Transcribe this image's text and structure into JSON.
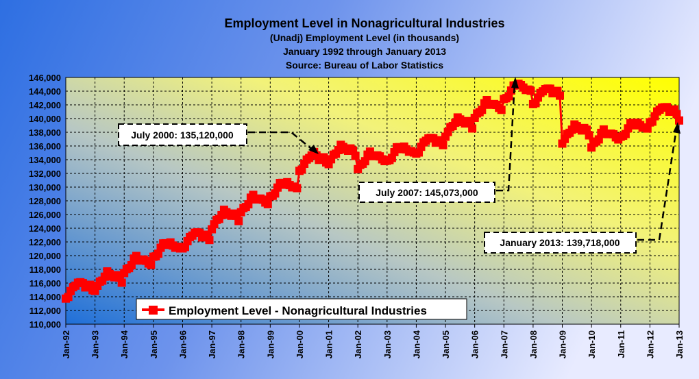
{
  "chart_data": {
    "type": "line",
    "title": "Employment Level in Nonagricultural Industries",
    "subtitles": [
      "(Unadj) Employment Level (in thousands)",
      "January 1992 through January 2013",
      "Source: Bureau of Labor Statistics"
    ],
    "ylim": [
      110000,
      146000
    ],
    "y_ticks": [
      "110,000",
      "112,000",
      "114,000",
      "116,000",
      "118,000",
      "120,000",
      "122,000",
      "124,000",
      "126,000",
      "128,000",
      "130,000",
      "132,000",
      "134,000",
      "136,000",
      "138,000",
      "140,000",
      "142,000",
      "144,000",
      "146,000"
    ],
    "x_ticks": [
      "Jan-92",
      "Jan-93",
      "Jan-94",
      "Jan-95",
      "Jan-96",
      "Jan-97",
      "Jan-98",
      "Jan-99",
      "Jan-00",
      "Jan-01",
      "Jan-02",
      "Jan-03",
      "Jan-04",
      "Jan-05",
      "Jan-06",
      "Jan-07",
      "Jan-08",
      "Jan-09",
      "Jan-10",
      "Jan-11",
      "Jan-12",
      "Jan-13"
    ],
    "x_range": [
      "Jan-92",
      "Jan-13"
    ],
    "grid": true,
    "legend": {
      "position": "bottom-left"
    },
    "series": [
      {
        "name": "Employment Level - Nonagricultural Industries",
        "color": "#ff0000",
        "annual_pattern": [
          -1400,
          -1000,
          -500,
          0,
          600,
          1000,
          700,
          700,
          400,
          400,
          300,
          -200
        ],
        "annual_levels": [
          {
            "year": 1992,
            "value": 115200
          },
          {
            "year": 1993,
            "value": 116500
          },
          {
            "year": 1994,
            "value": 118800
          },
          {
            "year": 1995,
            "value": 121000
          },
          {
            "year": 1996,
            "value": 122500
          },
          {
            "year": 1997,
            "value": 125500
          },
          {
            "year": 1998,
            "value": 127700
          },
          {
            "year": 1999,
            "value": 129800
          },
          {
            "year": 2000,
            "value": 133800
          },
          {
            "year": 2001,
            "value": 135000
          },
          {
            "year": 2002,
            "value": 134000
          },
          {
            "year": 2003,
            "value": 135000
          },
          {
            "year": 2004,
            "value": 136300
          },
          {
            "year": 2005,
            "value": 139000
          },
          {
            "year": 2006,
            "value": 141500
          },
          {
            "year": 2007,
            "value": 144000
          },
          {
            "year": 2008,
            "value": 143500
          },
          {
            "year": 2009,
            "value": 138000
          },
          {
            "year": 2010,
            "value": 137200
          },
          {
            "year": 2011,
            "value": 138500
          },
          {
            "year": 2012,
            "value": 140800
          }
        ],
        "final_point": {
          "x": "Jan-13",
          "value": 139718
        },
        "highlights": [
          {
            "x": "Jul-00",
            "value": 135120
          },
          {
            "x": "Jul-07",
            "value": 145073
          }
        ]
      }
    ],
    "annotations": [
      {
        "text": "July 2000: 135,120,000",
        "target": "Jul-00"
      },
      {
        "text": "July 2007:  145,073,000",
        "target": "Jul-07"
      },
      {
        "text": "January 2013: 139,718,000",
        "target": "Jan-13"
      }
    ]
  },
  "colors": {
    "outer_bg_left": "#2a6de0",
    "outer_bg_right": "#e6e9ff",
    "plot_bg_yellow": "#ffff00",
    "plot_bg_blue": "#1f6fd9",
    "line": "#ff0000",
    "grid": "#000000"
  }
}
